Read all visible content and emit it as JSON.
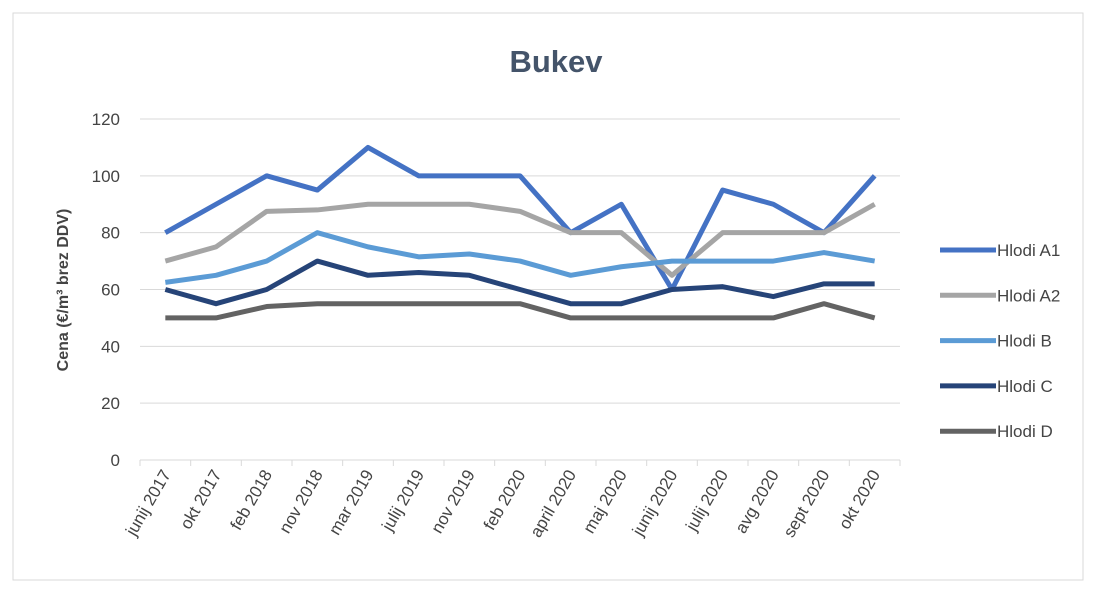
{
  "chart_data": {
    "type": "line",
    "title": "Bukev",
    "y_label": "Cena (€/m³ brez DDV)",
    "categories": [
      "junij 2017",
      "okt 2017",
      "feb 2018",
      "nov 2018",
      "mar 2019",
      "julij 2019",
      "nov 2019",
      "feb 2020",
      "april 2020",
      "maj 2020",
      "junij 2020",
      "julij 2020",
      "avg 2020",
      "sept 2020",
      "okt 2020"
    ],
    "series": [
      {
        "name": "Hlodi A1",
        "color": "#4472c4",
        "values": [
          80,
          90,
          100,
          95,
          110,
          100,
          100,
          100,
          80,
          90,
          60,
          95,
          90,
          80,
          100
        ]
      },
      {
        "name": "Hlodi A2",
        "color": "#a5a5a5",
        "values": [
          70,
          75,
          87.5,
          88,
          90,
          90,
          90,
          87.5,
          80,
          80,
          65,
          80,
          80,
          80,
          90
        ]
      },
      {
        "name": "Hlodi B",
        "color": "#5b9bd5",
        "values": [
          62.5,
          65,
          70,
          80,
          75,
          71.5,
          72.5,
          70,
          65,
          68,
          70,
          70,
          70,
          73,
          70
        ]
      },
      {
        "name": "Hlodi C",
        "color": "#264478",
        "values": [
          60,
          55,
          60,
          70,
          65,
          66,
          65,
          60,
          55,
          55,
          60,
          61,
          57.5,
          62,
          62
        ]
      },
      {
        "name": "Hlodi D",
        "color": "#636363",
        "values": [
          50,
          50,
          54,
          55,
          55,
          55,
          55,
          55,
          50,
          50,
          50,
          50,
          50,
          55,
          50
        ]
      }
    ],
    "ylim": [
      0,
      120
    ],
    "yticks": [
      0,
      20,
      40,
      60,
      80,
      100,
      120
    ],
    "grid": true,
    "legend": "right"
  }
}
